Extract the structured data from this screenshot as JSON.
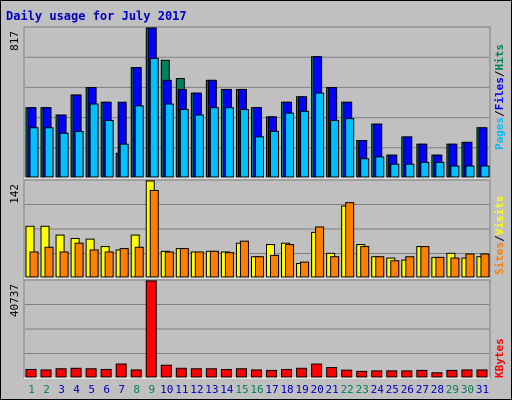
{
  "title": "Daily usage for July 2017",
  "colors": {
    "title": "#0000c0",
    "frame_bg": "#c0c0c0",
    "panel_bg": "#c0c0c0",
    "grid": "#808080",
    "hits": "#00805c",
    "files": "#0000ff",
    "pages": "#00c0ff",
    "visits": "#ffff00",
    "sites": "#ff8000",
    "kbytes": "#ff0000",
    "day_normal": "#0000c0",
    "day_weekend": "#00805c",
    "separator": "#000000"
  },
  "labels": {
    "pages": "Pages",
    "files": "Files",
    "hits": "Hits",
    "sites": "Sites",
    "visits": "Visits",
    "kbytes": "KBytes",
    "sep": "/"
  },
  "chart_data": [
    {
      "type": "bar",
      "title": "Daily usage for July 2017",
      "panel": "hits-files-pages",
      "ymax_label": "817",
      "ylim": [
        0,
        817
      ],
      "x": [
        1,
        2,
        3,
        4,
        5,
        6,
        7,
        8,
        9,
        10,
        11,
        12,
        13,
        14,
        15,
        16,
        17,
        18,
        19,
        20,
        21,
        22,
        23,
        24,
        25,
        26,
        27,
        28,
        29,
        30,
        31
      ],
      "weekend_days": [
        1,
        2,
        8,
        9,
        15,
        16,
        22,
        23,
        29,
        30
      ],
      "series": [
        {
          "name": "Hits",
          "values": [
            380,
            380,
            340,
            450,
            490,
            410,
            130,
            600,
            817,
            640,
            540,
            460,
            530,
            480,
            480,
            380,
            330,
            410,
            440,
            660,
            490,
            410,
            200,
            290,
            120,
            220,
            180,
            120,
            180,
            190,
            270
          ]
        },
        {
          "name": "Files",
          "values": [
            380,
            380,
            340,
            450,
            490,
            410,
            410,
            600,
            817,
            530,
            480,
            460,
            530,
            480,
            480,
            380,
            330,
            410,
            440,
            660,
            490,
            410,
            200,
            290,
            120,
            220,
            180,
            120,
            180,
            190,
            270
          ]
        },
        {
          "name": "Pages",
          "values": [
            270,
            270,
            240,
            250,
            400,
            310,
            180,
            390,
            650,
            400,
            370,
            340,
            380,
            380,
            370,
            220,
            250,
            350,
            360,
            460,
            310,
            320,
            100,
            110,
            70,
            70,
            80,
            80,
            60,
            60,
            60
          ]
        }
      ]
    },
    {
      "type": "bar",
      "panel": "visits-sites",
      "ymax_label": "142",
      "ylim": [
        0,
        142
      ],
      "x": [
        1,
        2,
        3,
        4,
        5,
        6,
        7,
        8,
        9,
        10,
        11,
        12,
        13,
        14,
        15,
        16,
        17,
        18,
        19,
        20,
        21,
        22,
        23,
        24,
        25,
        26,
        27,
        28,
        29,
        30,
        31
      ],
      "weekend_days": [
        1,
        2,
        8,
        9,
        15,
        16,
        22,
        23,
        29,
        30
      ],
      "series": [
        {
          "name": "Visits",
          "values": [
            75,
            75,
            62,
            57,
            56,
            45,
            40,
            62,
            142,
            38,
            42,
            37,
            38,
            37,
            50,
            30,
            48,
            50,
            20,
            66,
            35,
            105,
            48,
            30,
            28,
            25,
            45,
            29,
            35,
            28,
            30
          ]
        },
        {
          "name": "Sites",
          "values": [
            37,
            44,
            37,
            50,
            40,
            37,
            42,
            44,
            128,
            37,
            42,
            37,
            38,
            36,
            53,
            30,
            32,
            48,
            22,
            74,
            30,
            110,
            45,
            30,
            24,
            30,
            45,
            29,
            28,
            34,
            34
          ]
        }
      ]
    },
    {
      "type": "bar",
      "panel": "kbytes",
      "ymax_label": "40737",
      "ylim": [
        0,
        40737
      ],
      "x": [
        1,
        2,
        3,
        4,
        5,
        6,
        7,
        8,
        9,
        10,
        11,
        12,
        13,
        14,
        15,
        16,
        17,
        18,
        19,
        20,
        21,
        22,
        23,
        24,
        25,
        26,
        27,
        28,
        29,
        30,
        31
      ],
      "weekend_days": [
        1,
        2,
        8,
        9,
        15,
        16,
        22,
        23,
        29,
        30
      ],
      "series": [
        {
          "name": "KBytes",
          "values": [
            3200,
            3000,
            3500,
            3700,
            3500,
            3200,
            5500,
            3000,
            40737,
            5000,
            3700,
            3500,
            3500,
            3200,
            3500,
            3000,
            2800,
            3200,
            3700,
            5500,
            4000,
            2900,
            2400,
            2600,
            2600,
            2600,
            2800,
            1800,
            2800,
            3000,
            3000
          ]
        }
      ]
    }
  ]
}
